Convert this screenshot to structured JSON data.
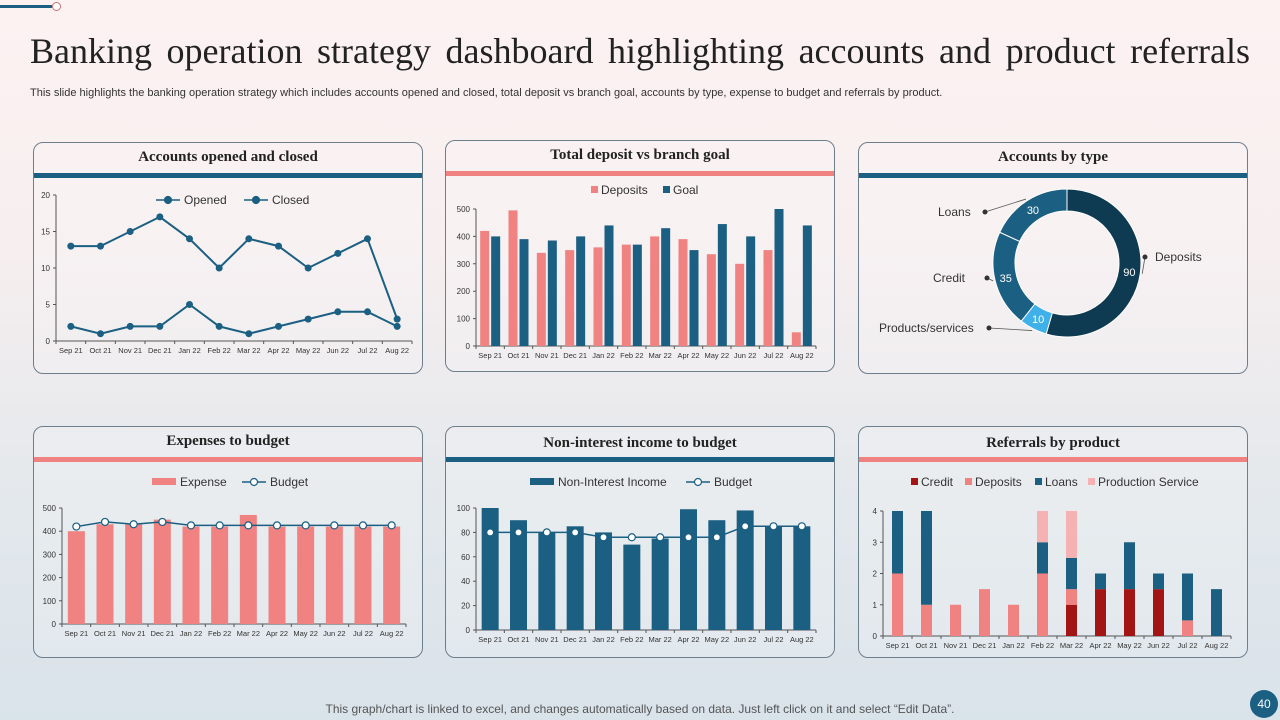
{
  "page": {
    "title": "Banking operation strategy dashboard highlighting accounts and product referrals",
    "subtitle": "This slide highlights the banking operation strategy which includes accounts opened and closed, total deposit vs branch goal, accounts by type,  expense to budget and referrals by product.",
    "footer": "This graph/chart is linked to excel,  and changes automatically based on data. Just left click on it and select “Edit Data”.",
    "page_number": "40"
  },
  "colors": {
    "blue": "#1b5f82",
    "pink": "#f08282",
    "dark": "#0e3b52",
    "light": "#3fb0e8",
    "red": "#a31515",
    "lightpink": "#f6b2b2"
  },
  "chart_data": [
    {
      "id": "opened_closed",
      "type": "line",
      "title": "Accounts opened and closed",
      "categories": [
        "Sep 21",
        "Oct 21",
        "Nov 21",
        "Dec 21",
        "Jan 22",
        "Feb 22",
        "Mar 22",
        "Apr  22",
        "May 22",
        "Jun 22",
        "Jul 22",
        "Aug 22"
      ],
      "series": [
        {
          "name": "Opened",
          "values": [
            13,
            13,
            15,
            17,
            14,
            10,
            14,
            13,
            10,
            12,
            14,
            3
          ]
        },
        {
          "name": "Closed",
          "values": [
            2,
            1,
            2,
            2,
            5,
            2,
            1,
            2,
            3,
            4,
            4,
            2
          ]
        }
      ],
      "ylim": [
        0,
        20
      ],
      "yticks": [
        0,
        5,
        10,
        15,
        20
      ]
    },
    {
      "id": "deposit_goal",
      "type": "bar",
      "title": "Total deposit vs branch  goal",
      "categories": [
        "Sep 21",
        "Oct 21",
        "Nov 21",
        "Dec 21",
        "Jan 22",
        "Feb 22",
        "Mar 22",
        "Apr  22",
        "May 22",
        "Jun 22",
        "Jul 22",
        "Aug 22"
      ],
      "series": [
        {
          "name": "Deposits",
          "values": [
            420,
            495,
            340,
            350,
            360,
            370,
            400,
            390,
            335,
            300,
            350,
            50
          ]
        },
        {
          "name": "Goal",
          "values": [
            400,
            390,
            385,
            400,
            440,
            370,
            430,
            350,
            445,
            400,
            500,
            440
          ]
        }
      ],
      "ylim": [
        0,
        500
      ],
      "yticks": [
        0,
        100,
        200,
        300,
        400,
        500
      ]
    },
    {
      "id": "accounts_type",
      "type": "pie",
      "title": "Accounts by type",
      "slices": [
        {
          "name": "Deposits",
          "value": 90
        },
        {
          "name": "Products/services",
          "value": 10
        },
        {
          "name": "Credit",
          "value": 35
        },
        {
          "name": "Loans",
          "value": 30
        }
      ]
    },
    {
      "id": "expense_budget",
      "type": "bar",
      "title": "Expenses to budget",
      "categories": [
        "Sep 21",
        "Oct 21",
        "Nov 21",
        "Dec 21",
        "Jan 22",
        "Feb 22",
        "Mar 22",
        "Apr  22",
        "May 22",
        "Jun 22",
        "Jul 22",
        "Aug 22"
      ],
      "series": [
        {
          "name": "Expense",
          "values": [
            400,
            430,
            430,
            450,
            420,
            420,
            470,
            420,
            420,
            420,
            420,
            420
          ]
        },
        {
          "name": "Budget",
          "values": [
            420,
            440,
            430,
            440,
            425,
            425,
            425,
            425,
            425,
            425,
            425,
            425
          ]
        }
      ],
      "ylim": [
        0,
        500
      ],
      "yticks": [
        0,
        100,
        200,
        300,
        400,
        500
      ]
    },
    {
      "id": "nonint_budget",
      "type": "bar",
      "title": "Non-interest income to budget",
      "categories": [
        "Sep 21",
        "Oct 21",
        "Nov 21",
        "Dec 21",
        "Jan 22",
        "Feb 22",
        "Mar 22",
        "Apr  22",
        "May 22",
        "Jun 22",
        "Jul 22",
        "Aug 22"
      ],
      "series": [
        {
          "name": "Non-Interest Income",
          "values": [
            100,
            90,
            80,
            85,
            80,
            70,
            75,
            99,
            90,
            98,
            85,
            85
          ]
        },
        {
          "name": "Budget",
          "values": [
            80,
            80,
            80,
            80,
            76,
            76,
            76,
            76,
            76,
            85,
            85,
            85
          ]
        }
      ],
      "ylim": [
        0,
        100
      ],
      "yticks": [
        0,
        20,
        40,
        60,
        80,
        100
      ]
    },
    {
      "id": "referrals",
      "type": "bar",
      "stacked": true,
      "title": "Referrals by product",
      "categories": [
        "Sep 21",
        "Oct 21",
        "Nov 21",
        "Dec 21",
        "Jan 22",
        "Feb 22",
        "Mar 22",
        "Apr  22",
        "May 22",
        "Jun 22",
        "Jul 22",
        "Aug 22"
      ],
      "series": [
        {
          "name": "Credit",
          "values": [
            0,
            0,
            0,
            0,
            0,
            0,
            1,
            1.5,
            1.5,
            1.5,
            0,
            0
          ]
        },
        {
          "name": "Deposits",
          "values": [
            2,
            1,
            1,
            1.5,
            1,
            2,
            0.5,
            0,
            0,
            0,
            0.5,
            0
          ]
        },
        {
          "name": "Loans",
          "values": [
            2,
            3,
            0,
            0,
            0,
            1,
            1,
            0.5,
            1.5,
            0.5,
            1.5,
            1.5
          ]
        },
        {
          "name": "Production Service",
          "values": [
            0,
            0,
            0,
            0,
            0,
            1,
            1.5,
            0,
            0,
            0,
            0,
            0
          ]
        }
      ],
      "ylim": [
        0,
        4
      ],
      "yticks": [
        0,
        1,
        2,
        3,
        4
      ]
    }
  ]
}
